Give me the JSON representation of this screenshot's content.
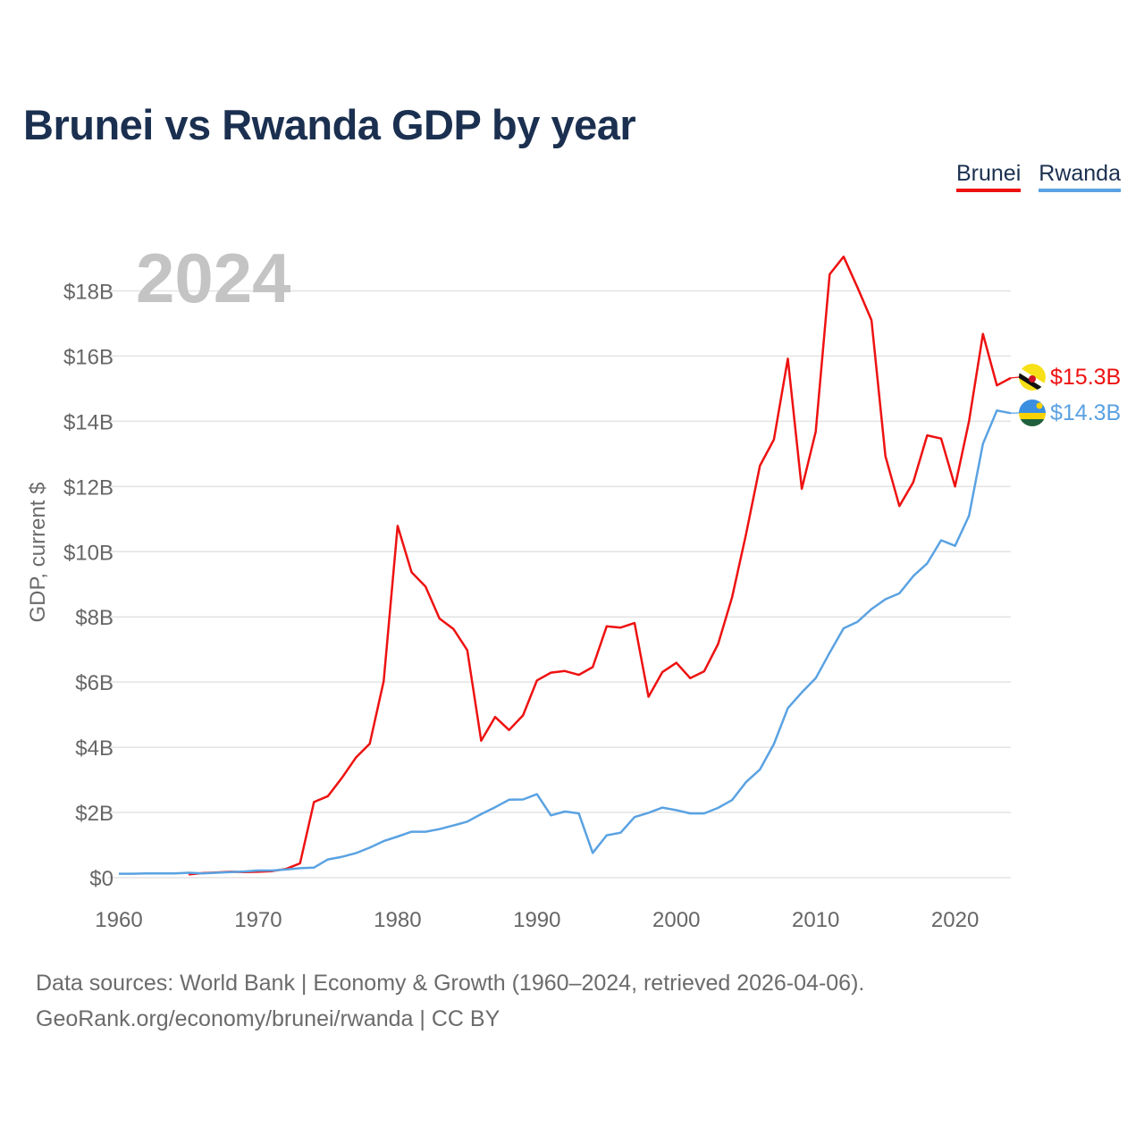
{
  "title": "Brunei vs Rwanda GDP by year",
  "legend": [
    {
      "name": "Brunei",
      "color": "#ee1111"
    },
    {
      "name": "Rwanda",
      "color": "#5aa2e2"
    }
  ],
  "year_watermark": "2024",
  "footer": {
    "line1": "Data sources: World Bank | Economy & Growth (1960–2024, retrieved 2026-04-06).",
    "line2": "GeoRank.org/economy/brunei/rwanda | CC BY"
  },
  "chart_data": {
    "type": "line",
    "title": "Brunei vs Rwanda GDP by year",
    "xlabel": "",
    "ylabel": "GDP, current $",
    "xlim": [
      1960,
      2024
    ],
    "ylim": [
      0,
      19
    ],
    "x_ticks": [
      1960,
      1970,
      1980,
      1990,
      2000,
      2010,
      2020
    ],
    "x_tick_labels": [
      "1960",
      "1970",
      "1980",
      "1990",
      "2000",
      "2010",
      "2020"
    ],
    "y_ticks": [
      0,
      2,
      4,
      6,
      8,
      10,
      12,
      14,
      16,
      18
    ],
    "y_tick_labels": [
      "$0",
      "$2B",
      "$4B",
      "$6B",
      "$8B",
      "$10B",
      "$12B",
      "$14B",
      "$16B",
      "$18B"
    ],
    "unit": "billions of current US$",
    "grid": true,
    "legend_position": "top-right",
    "series": [
      {
        "name": "Brunei",
        "color": "#ee1111",
        "end_label": "$15.3B",
        "flag": "brunei-flag",
        "x": [
          1965,
          1966,
          1967,
          1968,
          1969,
          1970,
          1971,
          1972,
          1973,
          1974,
          1975,
          1976,
          1977,
          1978,
          1979,
          1980,
          1981,
          1982,
          1983,
          1984,
          1985,
          1986,
          1987,
          1988,
          1989,
          1990,
          1991,
          1992,
          1993,
          1994,
          1995,
          1996,
          1997,
          1998,
          1999,
          2000,
          2001,
          2002,
          2003,
          2004,
          2005,
          2006,
          2007,
          2008,
          2009,
          2010,
          2011,
          2012,
          2013,
          2014,
          2015,
          2016,
          2017,
          2018,
          2019,
          2020,
          2021,
          2022,
          2023,
          2024
        ],
        "values": [
          0.1,
          0.14,
          0.16,
          0.18,
          0.17,
          0.18,
          0.2,
          0.27,
          0.44,
          2.32,
          2.5,
          3.06,
          3.68,
          4.11,
          6.03,
          10.79,
          9.37,
          8.93,
          7.95,
          7.63,
          6.98,
          4.2,
          4.93,
          4.53,
          4.98,
          6.05,
          6.29,
          6.34,
          6.22,
          6.46,
          7.71,
          7.67,
          7.81,
          5.55,
          6.31,
          6.59,
          6.12,
          6.33,
          7.17,
          8.6,
          10.53,
          12.64,
          13.44,
          15.92,
          11.93,
          13.68,
          18.51,
          19.05,
          18.1,
          17.1,
          12.93,
          11.4,
          12.13,
          13.57,
          13.47,
          12.0,
          14.0,
          16.68,
          15.1,
          15.33
        ]
      },
      {
        "name": "Rwanda",
        "color": "#5aa2e2",
        "end_label": "$14.3B",
        "flag": "rwanda-flag",
        "x": [
          1960,
          1961,
          1962,
          1963,
          1964,
          1965,
          1966,
          1967,
          1968,
          1969,
          1970,
          1971,
          1972,
          1973,
          1974,
          1975,
          1976,
          1977,
          1978,
          1979,
          1980,
          1981,
          1982,
          1983,
          1984,
          1985,
          1986,
          1987,
          1988,
          1989,
          1990,
          1991,
          1992,
          1993,
          1994,
          1995,
          1996,
          1997,
          1998,
          1999,
          2000,
          2001,
          2002,
          2003,
          2004,
          2005,
          2006,
          2007,
          2008,
          2009,
          2010,
          2011,
          2012,
          2013,
          2014,
          2015,
          2016,
          2017,
          2018,
          2019,
          2020,
          2021,
          2022,
          2023,
          2024
        ],
        "values": [
          0.12,
          0.12,
          0.13,
          0.13,
          0.13,
          0.15,
          0.13,
          0.15,
          0.17,
          0.19,
          0.22,
          0.22,
          0.25,
          0.29,
          0.31,
          0.56,
          0.64,
          0.75,
          0.92,
          1.12,
          1.26,
          1.41,
          1.41,
          1.49,
          1.6,
          1.72,
          1.95,
          2.16,
          2.39,
          2.4,
          2.56,
          1.91,
          2.03,
          1.97,
          0.76,
          1.3,
          1.38,
          1.86,
          1.99,
          2.15,
          2.07,
          1.97,
          1.97,
          2.14,
          2.38,
          2.93,
          3.32,
          4.1,
          5.2,
          5.68,
          6.12,
          6.9,
          7.65,
          7.85,
          8.24,
          8.54,
          8.72,
          9.25,
          9.64,
          10.35,
          10.18,
          11.1,
          13.31,
          14.33,
          14.25
        ]
      }
    ]
  }
}
